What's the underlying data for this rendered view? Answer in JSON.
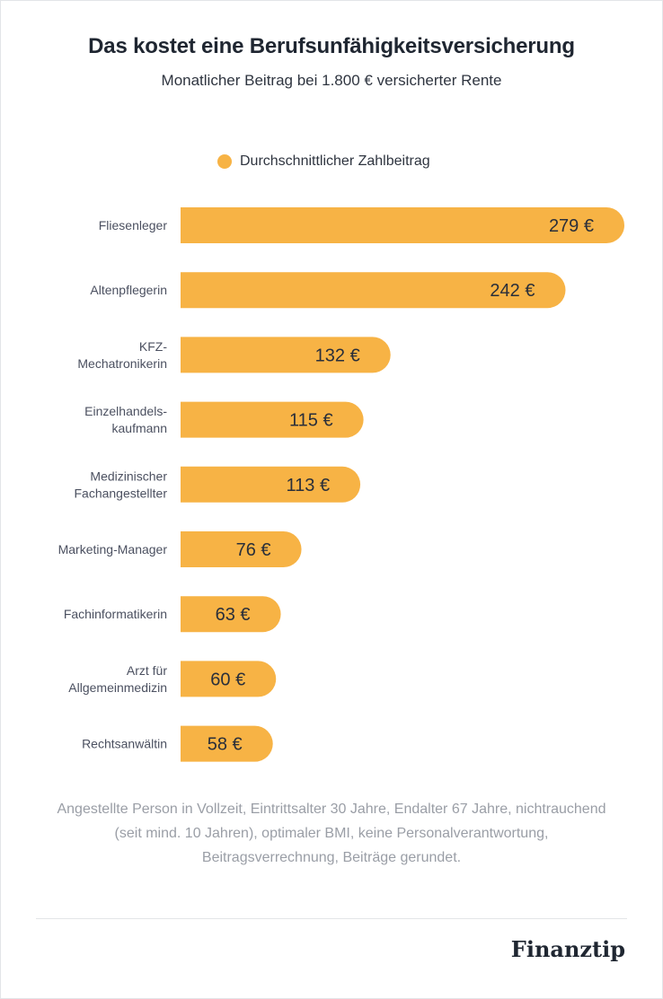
{
  "header": {
    "title": "Das kostet eine Berufsunfähigkeitsversicherung",
    "subtitle": "Monatlicher Beitrag bei 1.800 € versicherter Rente"
  },
  "legend": {
    "label": "Durchschnittlicher Zahlbeitrag",
    "color": "#f7b345"
  },
  "chart_data": {
    "type": "bar",
    "orientation": "horizontal",
    "title": "Das kostet eine Berufsunfähigkeitsversicherung",
    "subtitle": "Monatlicher Beitrag bei 1.800 € versicherter Rente",
    "categories": [
      "Fliesenleger",
      "Altenpflegerin",
      "KFZ-Mechatronikerin",
      "Einzelhandelskaufmann",
      "Medizinischer Fachangestellter",
      "Marketing-Manager",
      "Fachinformatikerin",
      "Arzt für Allgemeinmedizin",
      "Rechtsanwältin"
    ],
    "category_label_lines": [
      [
        "Fliesenleger"
      ],
      [
        "Altenpflegerin"
      ],
      [
        "KFZ-",
        "Mechatronikerin"
      ],
      [
        "Einzelhandels-",
        "kaufmann"
      ],
      [
        "Medizinischer",
        "Fachangestellter"
      ],
      [
        "Marketing-Manager"
      ],
      [
        "Fachinformatikerin"
      ],
      [
        "Arzt für",
        "Allgemeinmedizin"
      ],
      [
        "Rechtsanwältin"
      ]
    ],
    "series": [
      {
        "name": "Durchschnittlicher Zahlbeitrag",
        "values": [
          279,
          242,
          132,
          115,
          113,
          76,
          63,
          60,
          58
        ]
      }
    ],
    "value_labels": [
      "279 €",
      "242 €",
      "132 €",
      "115 €",
      "113 €",
      "76 €",
      "63 €",
      "60 €",
      "58 €"
    ],
    "unit": "€",
    "xlim": [
      0,
      279
    ],
    "grid": false,
    "legend_position": "top",
    "bar_color": "#f7b345"
  },
  "footnote": "Angestellte Person in Vollzeit, Eintrittsalter 30 Jahre, Endalter 67 Jahre, nichtrauchend (seit mind. 10 Jahren), optimaler BMI, keine Personalverantwortung, Beitragsverrechnung, Beiträge gerundet.",
  "brand": {
    "logo": "Finanztip"
  }
}
